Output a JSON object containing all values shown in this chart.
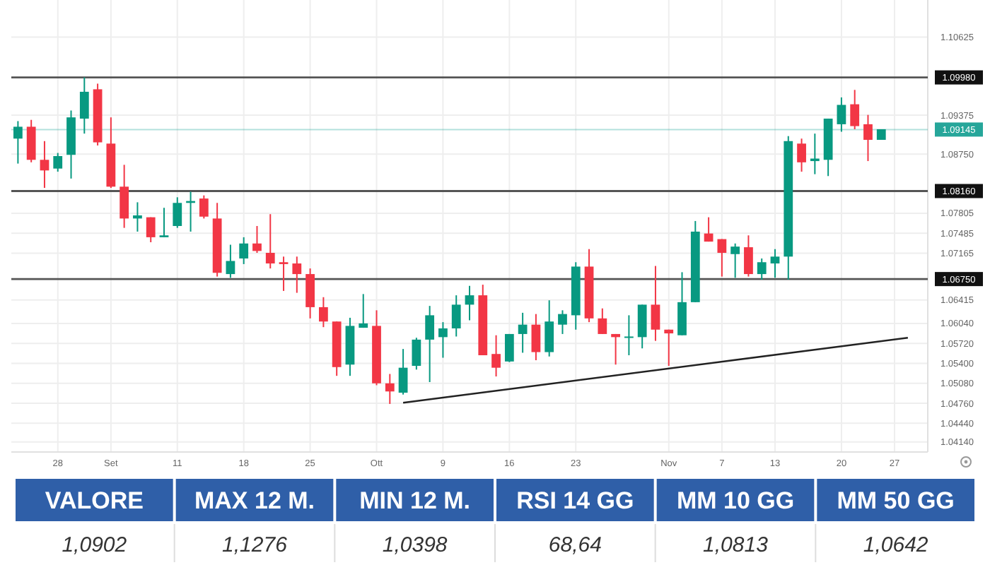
{
  "chart_data": [
    {
      "type": "candlestick",
      "categories": [
        null,
        null,
        null,
        "28",
        null,
        null,
        null,
        "Set",
        null,
        null,
        null,
        null,
        "11",
        null,
        null,
        null,
        null,
        "18",
        null,
        null,
        null,
        null,
        "25",
        null,
        null,
        null,
        null,
        "Ott",
        null,
        null,
        null,
        null,
        "9",
        null,
        null,
        null,
        null,
        "16",
        null,
        null,
        null,
        null,
        "23",
        null,
        null,
        null,
        null,
        null,
        null,
        "Nov",
        null,
        null,
        null,
        "7",
        null,
        null,
        null,
        "13",
        null,
        null,
        null,
        null,
        "20",
        null,
        null,
        null,
        "27",
        null,
        null
      ],
      "ohlc": [
        [
          1.09,
          1.0928,
          1.086,
          1.0919
        ],
        [
          1.0919,
          1.093,
          1.0862,
          1.0866
        ],
        [
          1.0866,
          1.0896,
          1.0821,
          1.0849
        ],
        [
          1.0852,
          1.0877,
          1.0847,
          1.0872
        ],
        [
          1.0874,
          1.0945,
          1.0836,
          1.0934
        ],
        [
          1.0932,
          1.0998,
          1.0908,
          1.0975
        ],
        [
          1.0979,
          1.0988,
          1.0889,
          1.0894
        ],
        [
          1.0892,
          1.0934,
          1.0821,
          1.0823
        ],
        [
          1.0823,
          1.0858,
          1.0757,
          1.0772
        ],
        [
          1.0772,
          1.0798,
          1.0751,
          1.0777
        ],
        [
          1.0774,
          1.0774,
          1.0734,
          1.0742
        ],
        [
          1.0742,
          1.0789,
          1.0742,
          1.0745
        ],
        [
          1.076,
          1.0806,
          1.0757,
          1.0797
        ],
        [
          1.0797,
          1.0815,
          1.0751,
          1.08
        ],
        [
          1.0804,
          1.0809,
          1.0772,
          1.0775
        ],
        [
          1.0772,
          1.0797,
          1.0679,
          1.0685
        ],
        [
          1.0683,
          1.073,
          1.0677,
          1.0704
        ],
        [
          1.0708,
          1.0742,
          1.0699,
          1.0732
        ],
        [
          1.0732,
          1.076,
          1.0717,
          1.072
        ],
        [
          1.0717,
          1.0779,
          1.0692,
          1.07
        ],
        [
          1.0702,
          1.0711,
          1.0656,
          1.0699
        ],
        [
          1.07,
          1.0711,
          1.0653,
          1.0683
        ],
        [
          1.0683,
          1.0692,
          1.0612,
          1.063
        ],
        [
          1.063,
          1.0646,
          1.0598,
          1.0607
        ],
        [
          1.0607,
          1.0607,
          1.052,
          1.0534
        ],
        [
          1.0538,
          1.0613,
          1.052,
          1.06
        ],
        [
          1.0597,
          1.0651,
          1.0597,
          1.0604
        ],
        [
          1.06,
          1.0625,
          1.0505,
          1.0508
        ],
        [
          1.0508,
          1.0523,
          1.0475,
          1.0495
        ],
        [
          1.0493,
          1.0563,
          1.049,
          1.0533
        ],
        [
          1.0536,
          1.0581,
          1.053,
          1.0578
        ],
        [
          1.0578,
          1.0632,
          1.051,
          1.0617
        ],
        [
          1.0582,
          1.0606,
          1.0549,
          1.0596
        ],
        [
          1.0596,
          1.0649,
          1.0583,
          1.0634
        ],
        [
          1.0634,
          1.0664,
          1.0609,
          1.0649
        ],
        [
          1.0649,
          1.0666,
          1.0553,
          1.0553
        ],
        [
          1.0555,
          1.0585,
          1.0519,
          1.0533
        ],
        [
          1.0543,
          1.0587,
          1.0542,
          1.0587
        ],
        [
          1.0587,
          1.0621,
          1.0557,
          1.0602
        ],
        [
          1.0602,
          1.0619,
          1.0545,
          1.0558
        ],
        [
          1.0558,
          1.0641,
          1.0551,
          1.0607
        ],
        [
          1.0602,
          1.0625,
          1.0587,
          1.0619
        ],
        [
          1.0617,
          1.0702,
          1.0594,
          1.0695
        ],
        [
          1.0695,
          1.0723,
          1.0606,
          1.0612
        ],
        [
          1.0612,
          1.0628,
          1.0587,
          1.0587
        ],
        [
          1.0587,
          1.0587,
          1.0538,
          1.0582
        ],
        [
          1.0581,
          1.0617,
          1.0553,
          1.0583
        ],
        [
          1.0582,
          1.0634,
          1.0564,
          1.0634
        ],
        [
          1.0634,
          1.0696,
          1.0576,
          1.0594
        ],
        [
          1.0594,
          1.0594,
          1.0536,
          1.0588
        ],
        [
          1.0585,
          1.0686,
          1.0585,
          1.0638
        ],
        [
          1.0638,
          1.0768,
          1.0638,
          1.0751
        ],
        [
          1.0748,
          1.0774,
          1.0735,
          1.0735
        ],
        [
          1.0739,
          1.0739,
          1.0679,
          1.0717
        ],
        [
          1.0715,
          1.0732,
          1.0677,
          1.0727
        ],
        [
          1.0726,
          1.0745,
          1.0679,
          1.0683
        ],
        [
          1.0683,
          1.0708,
          1.0674,
          1.0702
        ],
        [
          1.07,
          1.0723,
          1.0677,
          1.0711
        ],
        [
          1.0711,
          1.0904,
          1.0674,
          1.0896
        ],
        [
          1.0892,
          1.09,
          1.0847,
          1.0862
        ],
        [
          1.0864,
          1.0908,
          1.0843,
          1.0868
        ],
        [
          1.0866,
          1.0932,
          1.084,
          1.0932
        ],
        [
          1.0923,
          1.0966,
          1.0911,
          1.0954
        ],
        [
          1.0955,
          1.0978,
          1.0915,
          1.092
        ],
        [
          1.0923,
          1.0938,
          1.0864,
          1.0898
        ],
        [
          1.0898,
          1.0915,
          1.0898,
          1.0915
        ],
        null,
        null,
        null
      ],
      "colors": [
        "#089981",
        "#f23645",
        "#f23645",
        "#089981",
        "#089981",
        "#089981",
        "#f23645",
        "#f23645",
        "#f23645",
        "#089981",
        "#f23645",
        "#089981",
        "#089981",
        "#089981",
        "#f23645",
        "#f23645",
        "#089981",
        "#089981",
        "#f23645",
        "#f23645",
        "#f23645",
        "#f23645",
        "#f23645",
        "#f23645",
        "#f23645",
        "#089981",
        "#089981",
        "#f23645",
        "#f23645",
        "#089981",
        "#089981",
        "#089981",
        "#089981",
        "#089981",
        "#089981",
        "#f23645",
        "#f23645",
        "#089981",
        "#089981",
        "#f23645",
        "#089981",
        "#089981",
        "#089981",
        "#f23645",
        "#f23645",
        "#f23645",
        "#089981",
        "#089981",
        "#f23645",
        "#f23645",
        "#089981",
        "#089981",
        "#f23645",
        "#f23645",
        "#089981",
        "#f23645",
        "#089981",
        "#089981",
        "#089981",
        "#f23645",
        "#089981",
        "#089981",
        "#089981",
        "#f23645",
        "#f23645",
        "#089981",
        null,
        null,
        null
      ],
      "series": [
        {
          "type": "line",
          "color": "#222222",
          "values": [
            null,
            null,
            null,
            null,
            null,
            null,
            null,
            null,
            null,
            null,
            null,
            null,
            null,
            null,
            null,
            null,
            null,
            null,
            null,
            null,
            null,
            null,
            null,
            null,
            null,
            null,
            null,
            null,
            null,
            1.0477,
            null,
            null,
            null,
            null,
            null,
            null,
            null,
            null,
            null,
            null,
            null,
            null,
            null,
            null,
            null,
            null,
            null,
            null,
            null,
            null,
            null,
            null,
            null,
            null,
            null,
            null,
            null,
            null,
            null,
            null,
            null,
            null,
            null,
            null,
            null,
            null,
            null,
            1.0581,
            null
          ]
        }
      ],
      "ylim": [
        1.0398,
        1.1122
      ],
      "yticks": [
        1.10625,
        {
          "value": 1.09375,
          "label": "1.09375"
        },
        {
          "value": 1.0875,
          "label": "1.08750"
        },
        1.07805,
        1.07485,
        1.07165,
        1.06415,
        {
          "value": 1.0604,
          "label": "1.06040"
        },
        {
          "value": 1.0572,
          "label": "1.05720"
        },
        {
          "value": 1.054,
          "label": "1.05400"
        },
        {
          "value": 1.0508,
          "label": "1.05080"
        },
        {
          "value": 1.0476,
          "label": "1.04760"
        },
        {
          "value": 1.0444,
          "label": "1.04440"
        },
        {
          "value": 1.0414,
          "label": "1.04140"
        }
      ],
      "grid": true,
      "ref_lines": [
        {
          "axis": "y",
          "value": 1.0998,
          "label": "1.09980",
          "color": "#555555"
        },
        {
          "axis": "y",
          "value": 1.0816,
          "label": "1.08160",
          "color": "#555555"
        },
        {
          "axis": "y",
          "value": 1.0675,
          "label": "1.06750",
          "color": "#555555"
        },
        {
          "axis": "y",
          "value": 1.09145,
          "label": "1.09145",
          "color": "#26a69a"
        }
      ]
    },
    {
      "type": "other",
      "categories": [
        "VALORE",
        "MAX 12 M.",
        "MIN 12 M.",
        "RSI 14 GG",
        "MM 10 GG",
        "MM 50 GG"
      ],
      "value_labels": [
        "1,0902",
        "1,1276",
        "1,0398",
        "68,64",
        "1,0813",
        "1,0642"
      ]
    }
  ]
}
